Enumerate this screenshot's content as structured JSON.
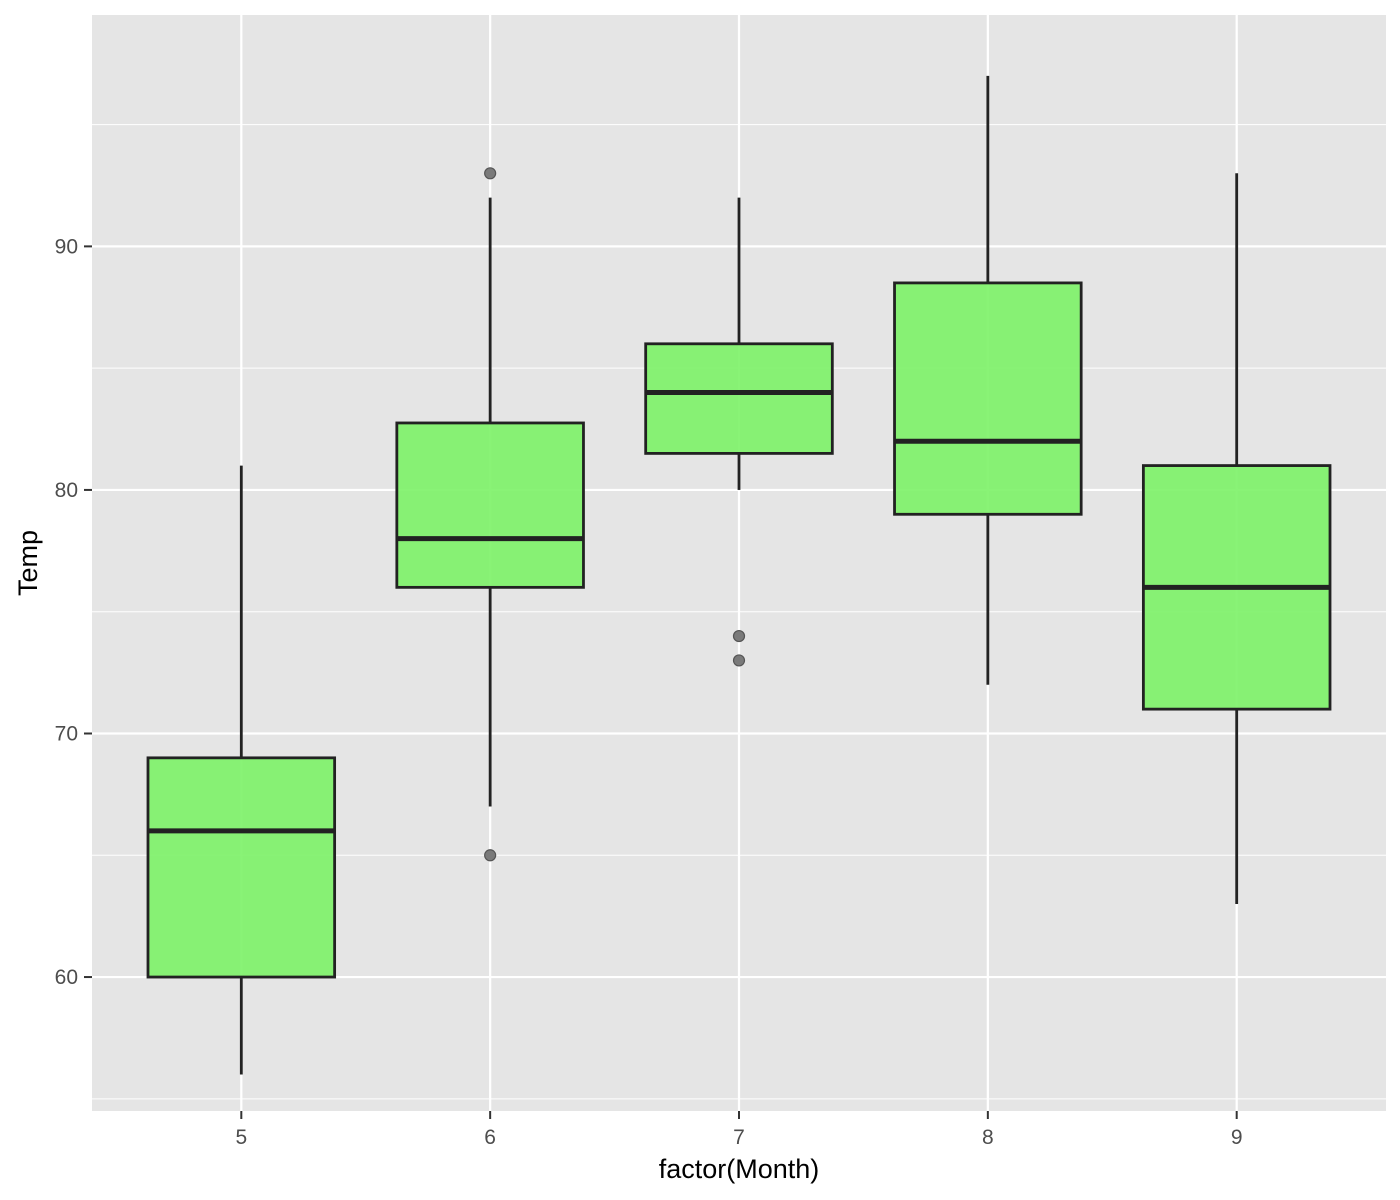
{
  "chart_data": {
    "type": "box",
    "xlabel": "factor(Month)",
    "ylabel": "Temp",
    "categories": [
      "5",
      "6",
      "7",
      "8",
      "9"
    ],
    "ylim": [
      54.5,
      99.5
    ],
    "y_ticks": [
      60,
      70,
      80,
      90
    ],
    "y_minor_ticks": [
      55,
      65,
      75,
      85,
      95
    ],
    "grid": true,
    "fill_color": "#7CF267",
    "outline_color": "#222222",
    "panel_color": "#E5E5E5",
    "boxes": [
      {
        "category": "5",
        "whisker_low": 56,
        "q1": 60,
        "median": 66,
        "q3": 69,
        "whisker_high": 81,
        "outliers": []
      },
      {
        "category": "6",
        "whisker_low": 67,
        "q1": 76,
        "median": 78,
        "q3": 82.75,
        "whisker_high": 92,
        "outliers": [
          65,
          93
        ]
      },
      {
        "category": "7",
        "whisker_low": 80,
        "q1": 81.5,
        "median": 84,
        "q3": 86,
        "whisker_high": 92,
        "outliers": [
          73,
          74
        ]
      },
      {
        "category": "8",
        "whisker_low": 72,
        "q1": 79,
        "median": 82,
        "q3": 88.5,
        "whisker_high": 97,
        "outliers": []
      },
      {
        "category": "9",
        "whisker_low": 63,
        "q1": 71,
        "median": 76,
        "q3": 81,
        "whisker_high": 93,
        "outliers": []
      }
    ]
  }
}
